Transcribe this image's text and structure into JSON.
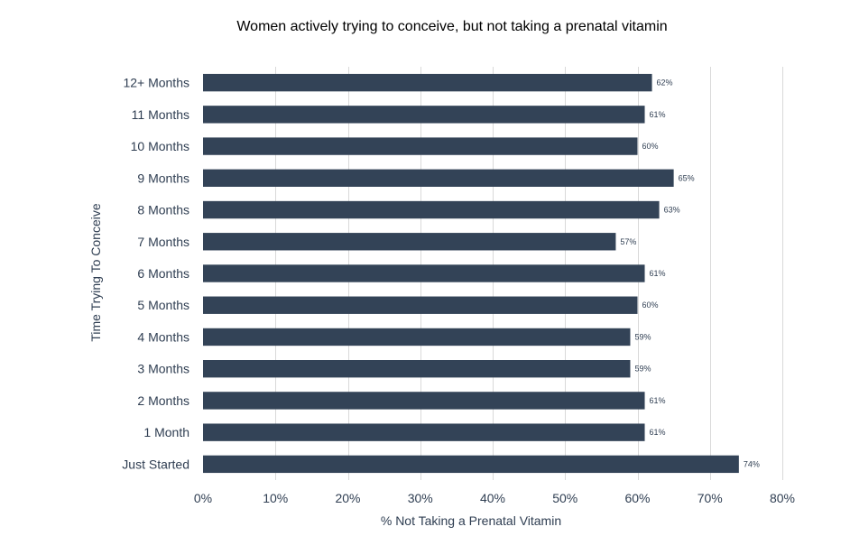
{
  "chart_data": {
    "type": "bar",
    "orientation": "horizontal",
    "title": "Women actively trying to conceive, but not taking a prenatal vitamin",
    "xlabel": "% Not Taking a Prenatal Vitamin",
    "ylabel": "Time Trying To Conceive",
    "categories": [
      "12+ Months",
      "11 Months",
      "10 Months",
      "9 Months",
      "8 Months",
      "7 Months",
      "6 Months",
      "5 Months",
      "4 Months",
      "3 Months",
      "2 Months",
      "1 Month",
      "Just Started"
    ],
    "values": [
      62,
      61,
      60,
      65,
      63,
      57,
      61,
      60,
      59,
      59,
      61,
      61,
      74
    ],
    "data_labels": [
      "62%",
      "61%",
      "60%",
      "65%",
      "63%",
      "57%",
      "61%",
      "60%",
      "59%",
      "59%",
      "61%",
      "61%",
      "74%"
    ],
    "xlim": [
      0,
      80
    ],
    "xticks": [
      0,
      10,
      20,
      30,
      40,
      50,
      60,
      70,
      80
    ],
    "xtick_labels": [
      "0%",
      "10%",
      "20%",
      "30%",
      "40%",
      "50%",
      "60%",
      "70%",
      "80%"
    ],
    "grid": true,
    "bar_color": "#334357",
    "text_color": "#2f3e52"
  }
}
